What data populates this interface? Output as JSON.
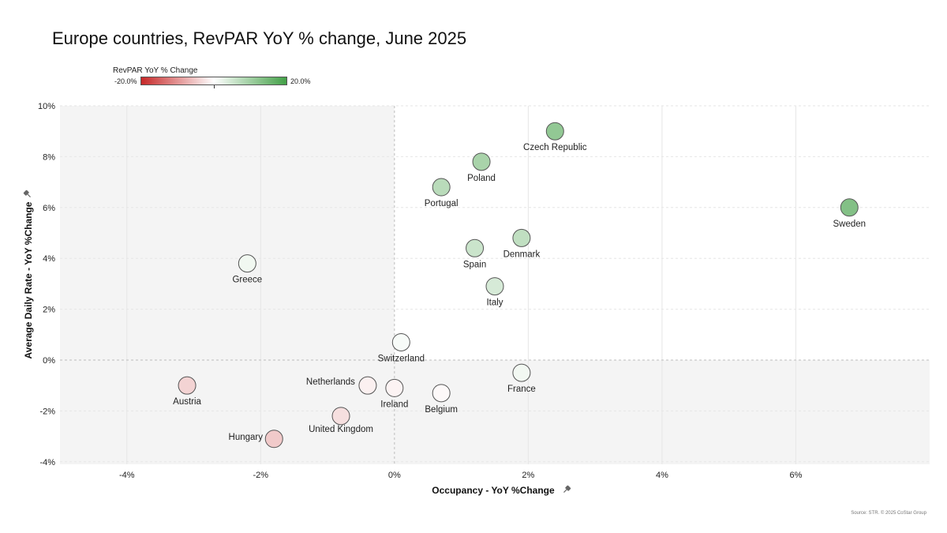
{
  "colors": {
    "negative": "#c62828",
    "neutral": "#ffffff",
    "positive": "#43a047",
    "quadrant_shade": "#f4f4f4"
  },
  "legend": {
    "title": "RevPAR YoY % Change",
    "min_label": "-20.0%",
    "max_label": "20.0%"
  },
  "source": "Source: STR. © 2025 CoStar Group",
  "pin_icon": "pin-icon",
  "chart_data": {
    "type": "scatter",
    "title": "Europe countries, RevPAR YoY % change, June 2025",
    "xlabel": "Occupancy - YoY %Change",
    "ylabel": "Average Daily Rate - YoY %Change",
    "xlim": [
      -5,
      8
    ],
    "ylim": [
      -4.1,
      10
    ],
    "xticks": [
      -4,
      -2,
      0,
      2,
      4,
      6
    ],
    "xtick_labels": [
      "-4%",
      "-2%",
      "0%",
      "2%",
      "4%",
      "6%"
    ],
    "yticks": [
      10,
      8,
      6,
      4,
      2,
      0,
      -2,
      -4
    ],
    "ytick_labels": [
      "10%",
      "8%",
      "6%",
      "4%",
      "2%",
      "0%",
      "-2%",
      "-4%"
    ],
    "color_scale": {
      "min": -20,
      "max": 20,
      "legend": "RevPAR YoY % Change"
    },
    "grid": true,
    "points": [
      {
        "label": "Czech Republic",
        "x": 2.4,
        "y": 9.0,
        "revpar": 11.6
      },
      {
        "label": "Poland",
        "x": 1.3,
        "y": 7.8,
        "revpar": 9.2
      },
      {
        "label": "Portugal",
        "x": 0.7,
        "y": 6.8,
        "revpar": 7.5
      },
      {
        "label": "Sweden",
        "x": 6.8,
        "y": 6.0,
        "revpar": 13.2
      },
      {
        "label": "Spain",
        "x": 1.2,
        "y": 4.4,
        "revpar": 5.6
      },
      {
        "label": "Denmark",
        "x": 1.9,
        "y": 4.8,
        "revpar": 6.7
      },
      {
        "label": "Greece",
        "x": -2.2,
        "y": 3.8,
        "revpar": 1.5
      },
      {
        "label": "Italy",
        "x": 1.5,
        "y": 2.9,
        "revpar": 4.4
      },
      {
        "label": "Switzerland",
        "x": 0.1,
        "y": 0.7,
        "revpar": 0.8
      },
      {
        "label": "France",
        "x": 1.9,
        "y": -0.5,
        "revpar": 1.4
      },
      {
        "label": "Netherlands",
        "x": -0.4,
        "y": -1.0,
        "revpar": -1.4
      },
      {
        "label": "Ireland",
        "x": 0.0,
        "y": -1.1,
        "revpar": -1.1
      },
      {
        "label": "Belgium",
        "x": 0.7,
        "y": -1.3,
        "revpar": -0.6
      },
      {
        "label": "Austria",
        "x": -3.1,
        "y": -1.0,
        "revpar": -4.1
      },
      {
        "label": "United Kingdom",
        "x": -0.8,
        "y": -2.2,
        "revpar": -3.0
      },
      {
        "label": "Hungary",
        "x": -1.8,
        "y": -3.1,
        "revpar": -4.9
      }
    ]
  }
}
